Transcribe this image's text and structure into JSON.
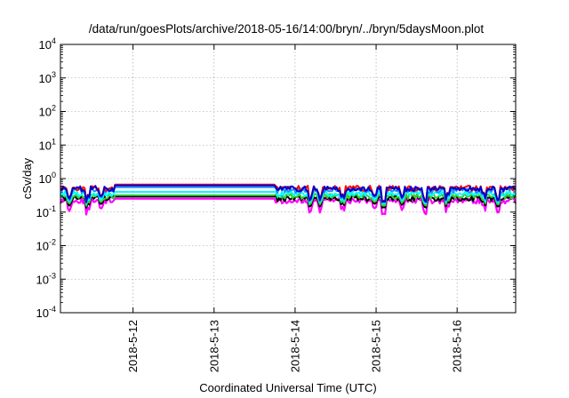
{
  "chart_data": {
    "type": "line",
    "title": "/data/run/goesPlots/archive/2018-05-16/14:00/bryn/../bryn/5daysMoon.plot",
    "xlabel": "Coordinated Universal Time (UTC)",
    "ylabel": "cSv/day",
    "x_scale": "time",
    "xlim": [
      "2018-05-11T02:30",
      "2018-05-16T17:20"
    ],
    "x_ticks": [
      {
        "label": "2018-5-12",
        "value": "2018-05-12"
      },
      {
        "label": "2018-5-13",
        "value": "2018-05-13"
      },
      {
        "label": "2018-5-14",
        "value": "2018-05-14"
      },
      {
        "label": "2018-5-15",
        "value": "2018-05-15"
      },
      {
        "label": "2018-5-16",
        "value": "2018-05-16"
      }
    ],
    "y_scale": "log",
    "ylim": [
      0.0001,
      10000
    ],
    "y_ticks": [
      {
        "base": "10",
        "exp": "4",
        "value": 10000
      },
      {
        "base": "10",
        "exp": "3",
        "value": 1000
      },
      {
        "base": "10",
        "exp": "2",
        "value": 100
      },
      {
        "base": "10",
        "exp": "1",
        "value": 10
      },
      {
        "base": "10",
        "exp": "0",
        "value": 1
      },
      {
        "base": "10",
        "exp": "-1",
        "value": 0.1
      },
      {
        "base": "10",
        "exp": "-2",
        "value": 0.01
      },
      {
        "base": "10",
        "exp": "-3",
        "value": 0.001
      },
      {
        "base": "10",
        "exp": "-4",
        "value": 0.0001
      }
    ],
    "grid": true,
    "legend": "none",
    "series": [
      {
        "color": "#ff00ff",
        "plateau": 0.25,
        "typical": 0.22,
        "min": 0.08
      },
      {
        "color": "#000000",
        "plateau": 0.29,
        "typical": 0.26,
        "min": 0.13
      },
      {
        "color": "#32cd32",
        "plateau": 0.32,
        "typical": 0.3,
        "min": 0.15
      },
      {
        "color": "#00ffff",
        "plateau": 0.4,
        "typical": 0.36,
        "min": 0.17
      },
      {
        "color": "#1e90ff",
        "plateau": 0.55,
        "typical": 0.45,
        "min": 0.18
      },
      {
        "color": "#ff0000",
        "plateau": 0.66,
        "typical": 0.52,
        "min": 0.2
      },
      {
        "color": "#0000cd",
        "plateau": 0.62,
        "typical": 0.5,
        "min": 0.19
      }
    ],
    "plateau_range": [
      "2018-05-11T18:40",
      "2018-05-13T18:10"
    ]
  }
}
